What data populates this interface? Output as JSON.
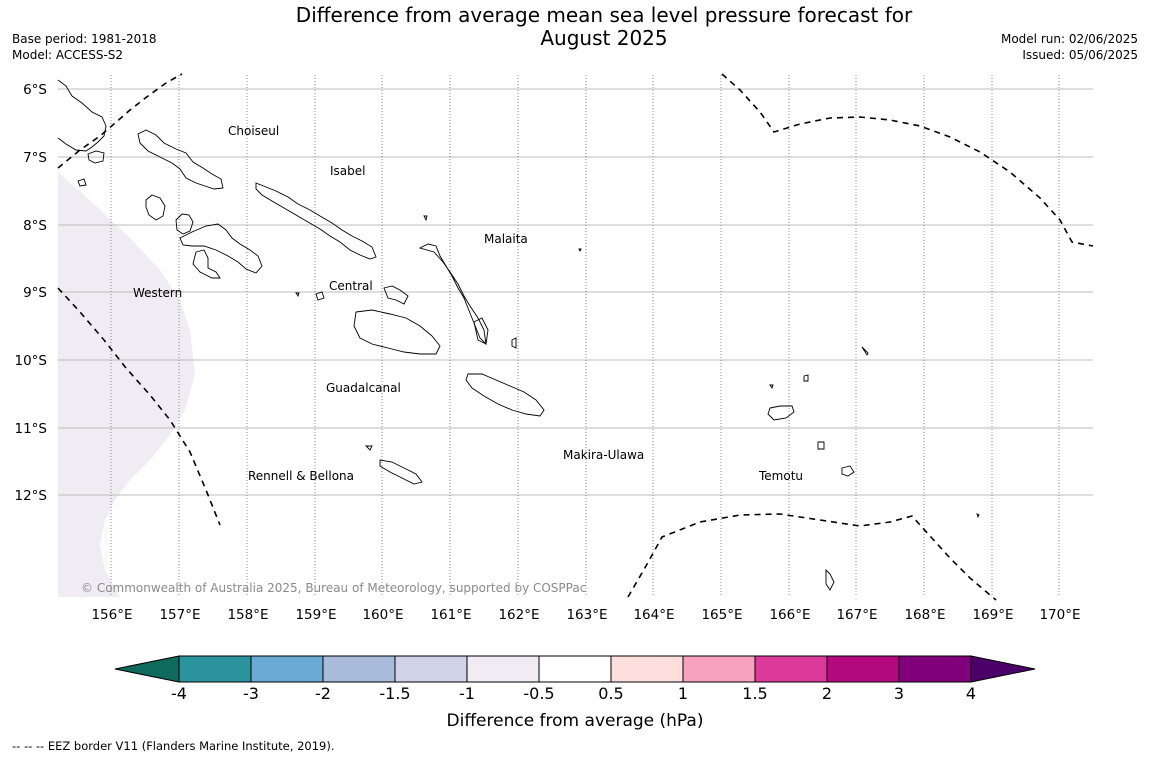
{
  "header": {
    "title_line1": "Difference from average mean sea level pressure forecast for",
    "title_line2": "August 2025",
    "base_period": "Base period: 1981-2018",
    "model": "Model: ACCESS-S2",
    "model_run": "Model run: 02/06/2025",
    "issued": "Issued: 05/06/2025"
  },
  "map": {
    "lat_labels": [
      "6°S",
      "7°S",
      "8°S",
      "9°S",
      "10°S",
      "11°S",
      "12°S"
    ],
    "lon_labels": [
      "156°E",
      "157°E",
      "158°E",
      "159°E",
      "160°E",
      "161°E",
      "162°E",
      "163°E",
      "164°E",
      "165°E",
      "166°E",
      "167°E",
      "168°E",
      "169°E",
      "170°E"
    ],
    "regions": [
      "Choiseul",
      "Isabel",
      "Malaita",
      "Western",
      "Central",
      "Guadalcanal",
      "Makira-Ulawa",
      "Rennell & Bellona",
      "Temotu"
    ],
    "copyright": "© Commonwealth of Australia 2025, Bureau of Meteorology, supported by COSPPac",
    "anomaly_fill_color": "#f1ecf3",
    "eez_line": "dashed black"
  },
  "colorbar": {
    "title": "Difference from average (hPa)",
    "tick_labels": [
      "-4",
      "-3",
      "-2",
      "-1.5",
      "-1",
      "-0.5",
      "0.5",
      "1",
      "1.5",
      "2",
      "3",
      "4"
    ],
    "colors": [
      "#0e6a5c",
      "#2a939c",
      "#6aaad4",
      "#a9bbdb",
      "#d0d2e8",
      "#f1ecf4",
      "#ffffff",
      "#ffdede",
      "#f8a2c0",
      "#dc3a9b",
      "#b4087f",
      "#7f007a",
      "#4a0068"
    ]
  },
  "footer": {
    "text": "--  --  -- EEZ border V11 (Flanders Marine Institute, 2019)."
  }
}
